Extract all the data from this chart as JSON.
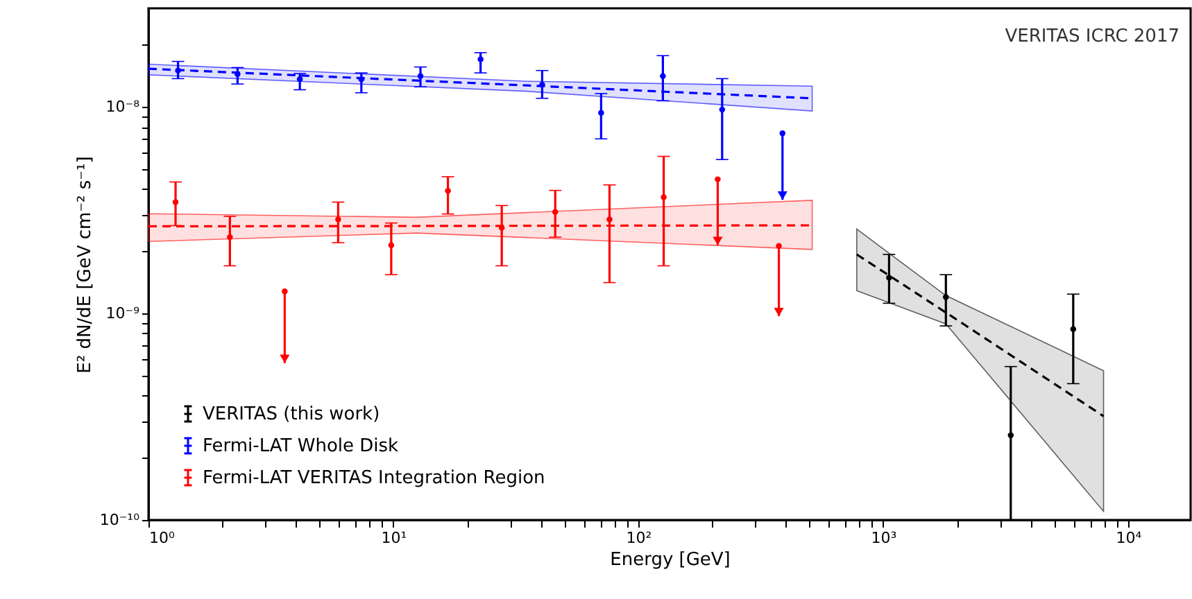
{
  "chart_data": {
    "type": "scatter",
    "xlabel": "Energy [GeV]",
    "ylabel": "E² dN/dE [GeV cm⁻² s⁻¹]",
    "annotations": [
      "VERITAS ICRC 2017"
    ],
    "log": "xy",
    "grid": false,
    "legend": "bottom left",
    "xlim": [
      1,
      18000
    ],
    "ylim": [
      1e-10,
      3e-08
    ],
    "xticks": [
      {
        "value": 1,
        "label": "10⁰"
      },
      {
        "value": 2,
        "label": null
      },
      {
        "value": 3,
        "label": null
      },
      {
        "value": 4,
        "label": null
      },
      {
        "value": 5,
        "label": null
      },
      {
        "value": 6,
        "label": null
      },
      {
        "value": 7,
        "label": null
      },
      {
        "value": 8,
        "label": null
      },
      {
        "value": 9,
        "label": null
      },
      {
        "value": 10,
        "label": "10¹"
      },
      {
        "value": 20,
        "label": null
      },
      {
        "value": 30,
        "label": null
      },
      {
        "value": 40,
        "label": null
      },
      {
        "value": 50,
        "label": null
      },
      {
        "value": 60,
        "label": null
      },
      {
        "value": 70,
        "label": null
      },
      {
        "value": 80,
        "label": null
      },
      {
        "value": 90,
        "label": null
      },
      {
        "value": 100,
        "label": "10²"
      },
      {
        "value": 200,
        "label": null
      },
      {
        "value": 300,
        "label": null
      },
      {
        "value": 400,
        "label": null
      },
      {
        "value": 500,
        "label": null
      },
      {
        "value": 600,
        "label": null
      },
      {
        "value": 700,
        "label": null
      },
      {
        "value": 800,
        "label": null
      },
      {
        "value": 900,
        "label": null
      },
      {
        "value": 1000,
        "label": "10³"
      },
      {
        "value": 2000,
        "label": null
      },
      {
        "value": 3000,
        "label": null
      },
      {
        "value": 4000,
        "label": null
      },
      {
        "value": 5000,
        "label": null
      },
      {
        "value": 6000,
        "label": null
      },
      {
        "value": 7000,
        "label": null
      },
      {
        "value": 8000,
        "label": null
      },
      {
        "value": 9000,
        "label": null
      },
      {
        "value": 10000,
        "label": "10⁴"
      }
    ],
    "yticks": [
      {
        "value": 1e-10,
        "label": "10⁻¹⁰"
      },
      {
        "value": 2e-10,
        "label": null
      },
      {
        "value": 3e-10,
        "label": null
      },
      {
        "value": 4e-10,
        "label": null
      },
      {
        "value": 5e-10,
        "label": null
      },
      {
        "value": 6e-10,
        "label": null
      },
      {
        "value": 7e-10,
        "label": null
      },
      {
        "value": 8e-10,
        "label": null
      },
      {
        "value": 9e-10,
        "label": null
      },
      {
        "value": 1e-09,
        "label": "10⁻⁹"
      },
      {
        "value": 2e-09,
        "label": null
      },
      {
        "value": 3e-09,
        "label": null
      },
      {
        "value": 4e-09,
        "label": null
      },
      {
        "value": 5e-09,
        "label": null
      },
      {
        "value": 6e-09,
        "label": null
      },
      {
        "value": 7e-09,
        "label": null
      },
      {
        "value": 8e-09,
        "label": null
      },
      {
        "value": 9e-09,
        "label": null
      },
      {
        "value": 1e-08,
        "label": "10⁻⁸"
      },
      {
        "value": 2e-08,
        "label": null
      }
    ],
    "series": [
      {
        "name": "VERITAS (this work)",
        "color": "#000000",
        "marker": "circle",
        "x": [
          1057,
          1803,
          3318,
          5970
        ],
        "values": [
          1.49e-09,
          1.2e-09,
          2.57e-10,
          8.4e-10
        ],
        "errors": [
          [
            1.12e-09,
            1.93e-09
          ],
          [
            8.7e-10,
            1.54e-09
          ],
          [
            1e-10,
            5.53e-10
          ],
          [
            4.57e-10,
            1.24e-09
          ]
        ]
      },
      {
        "name": "Fermi-LAT Whole Disk",
        "color": "#0000ff",
        "marker": "circle",
        "x": [
          1.32,
          2.31,
          4.15,
          7.4,
          12.9,
          22.7,
          40.5,
          70.5,
          126,
          220,
          388
        ],
        "values": [
          1.5e-08,
          1.44e-08,
          1.36e-08,
          1.36e-08,
          1.41e-08,
          1.7e-08,
          1.28e-08,
          9.35e-09,
          1.41e-08,
          9.7e-09,
          7.45e-09
        ],
        "errors": [
          [
            1.37e-08,
            1.66e-08
          ],
          [
            1.29e-08,
            1.55e-08
          ],
          [
            1.21e-08,
            1.45e-08
          ],
          [
            1.17e-08,
            1.46e-08
          ],
          [
            1.25e-08,
            1.56e-08
          ],
          [
            1.46e-08,
            1.83e-08
          ],
          [
            1.1e-08,
            1.5e-08
          ],
          [
            7e-09,
            1.16e-08
          ],
          [
            1.07e-08,
            1.77e-08
          ],
          [
            5.56e-09,
            1.37e-08
          ],
          [
            3.55e-09,
            7.45e-09
          ]
        ]
      },
      {
        "name": "Fermi-LAT VERITAS Integration Region",
        "color": "#ff0000",
        "marker": "circle",
        "x": [
          1.29,
          2.15,
          3.6,
          5.95,
          9.8,
          16.7,
          27.7,
          45.8,
          76.3,
          127,
          211,
          375
        ],
        "values": [
          3.46e-09,
          2.34e-09,
          1.28e-09,
          2.85e-09,
          2.14e-09,
          3.92e-09,
          2.6e-09,
          3.1e-09,
          2.85e-09,
          3.65e-09,
          4.46e-09,
          2.12e-09
        ],
        "errors": [
          [
            2.66e-09,
            4.33e-09
          ],
          [
            1.7e-09,
            2.95e-09
          ],
          [
            5.75e-10,
            1.28e-09
          ],
          [
            2.2e-09,
            3.46e-09
          ],
          [
            1.54e-09,
            2.74e-09
          ],
          [
            3.03e-09,
            4.59e-09
          ],
          [
            1.7e-09,
            3.33e-09
          ],
          [
            2.34e-09,
            3.94e-09
          ],
          [
            1.41e-09,
            4.19e-09
          ],
          [
            1.7e-09,
            5.76e-09
          ],
          [
            2.14e-09,
            4.46e-09
          ],
          [
            9.7e-10,
            2.12e-09
          ]
        ]
      },
      {
        "type": "line",
        "line_style": "dashed",
        "color": "#0000ff",
        "x": [
          1,
          35,
          513
        ],
        "values": [
          1.53e-08,
          1.27e-08,
          1.1e-08
        ],
        "lower": [
          1.43e-08,
          1.19e-08,
          9.55e-09
        ],
        "upper": [
          1.61e-08,
          1.33e-08,
          1.26e-08
        ]
      },
      {
        "type": "line",
        "line_style": "dashed",
        "color": "#ff0000",
        "x": [
          1,
          12.5,
          513
        ],
        "values": [
          2.64e-09,
          2.65e-09,
          2.67e-09
        ],
        "lower": [
          2.23e-09,
          2.45e-09,
          2.04e-09
        ],
        "upper": [
          3.04e-09,
          2.92e-09,
          3.53e-09
        ]
      },
      {
        "type": "line",
        "line_style": "dashed",
        "color": "#000000",
        "x": [
          780,
          1803,
          7940
        ],
        "values": [
          1.93e-09,
          1.01e-09,
          3.18e-10
        ],
        "lower": [
          1.29e-09,
          8.9e-10,
          1.1e-10
        ],
        "upper": [
          2.56e-09,
          1.22e-09,
          5.28e-10
        ]
      }
    ]
  }
}
